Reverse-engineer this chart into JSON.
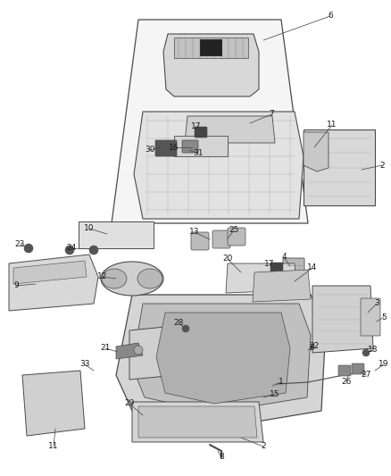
{
  "bg_color": "#ffffff",
  "line_color": "#4a4a4a",
  "text_color": "#1a1a1a",
  "label_fontsize": 6.5,
  "fig_width": 4.38,
  "fig_height": 5.33,
  "dpi": 100,
  "image_data": ""
}
